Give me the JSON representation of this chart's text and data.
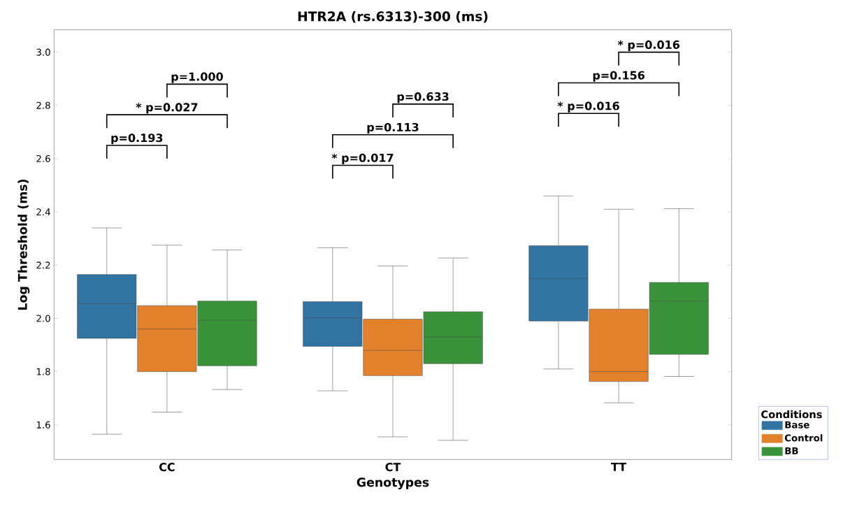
{
  "chart_data": {
    "type": "box",
    "title": "HTR2A (rs.6313)-300 (ms)",
    "xlabel": "Genotypes",
    "ylabel": "Log Threshold (ms)",
    "legend_title": "Conditions",
    "legend": "bottom right",
    "categories": [
      "CC",
      "CT",
      "TT"
    ],
    "ylim": [
      1.47,
      3.084
    ],
    "yticks": [
      {
        "value": 1.6,
        "label": "1.6"
      },
      {
        "value": 1.8,
        "label": "1.8"
      },
      {
        "value": 2.0,
        "label": "2.0"
      },
      {
        "value": 2.2,
        "label": "2.2"
      },
      {
        "value": 2.4,
        "label": "2.4"
      },
      {
        "value": 2.6,
        "label": "2.6"
      },
      {
        "value": 2.8,
        "label": "2.8"
      },
      {
        "value": 3.0,
        "label": "3.0"
      }
    ],
    "series": [
      {
        "name": "Base",
        "color": "#3274a1",
        "boxes": [
          {
            "low": 1.565,
            "q1": 1.925,
            "median": 2.055,
            "q3": 2.165,
            "high": 2.34
          },
          {
            "low": 1.728,
            "q1": 1.895,
            "median": 2.002,
            "q3": 2.063,
            "high": 2.265
          },
          {
            "low": 1.81,
            "q1": 1.99,
            "median": 2.15,
            "q3": 2.273,
            "high": 2.46
          }
        ]
      },
      {
        "name": "Control",
        "color": "#e1812c",
        "boxes": [
          {
            "low": 1.648,
            "q1": 1.8,
            "median": 1.96,
            "q3": 2.048,
            "high": 2.275
          },
          {
            "low": 1.555,
            "q1": 1.785,
            "median": 1.88,
            "q3": 1.997,
            "high": 2.197
          },
          {
            "low": 1.683,
            "q1": 1.763,
            "median": 1.8,
            "q3": 2.035,
            "high": 2.41
          }
        ]
      },
      {
        "name": "BB",
        "color": "#3a923a",
        "boxes": [
          {
            "low": 1.733,
            "q1": 1.822,
            "median": 1.993,
            "q3": 2.065,
            "high": 2.257
          },
          {
            "low": 1.542,
            "q1": 1.83,
            "median": 1.93,
            "q3": 2.025,
            "high": 2.227
          },
          {
            "low": 1.782,
            "q1": 1.865,
            "median": 2.065,
            "q3": 2.135,
            "high": 2.412
          }
        ]
      }
    ],
    "annotations": [
      "p=0.193",
      "* p=0.027",
      "p=1.000",
      "* p=0.017",
      "p=0.113",
      "p=0.633",
      "* p=0.016",
      "p=0.156",
      "* p=0.016"
    ]
  }
}
